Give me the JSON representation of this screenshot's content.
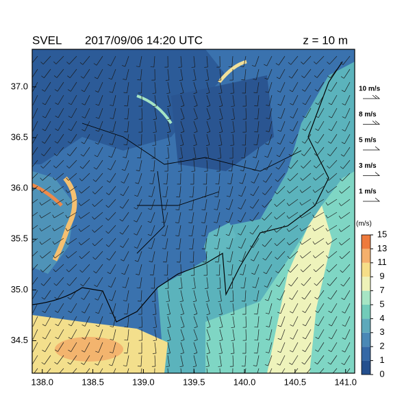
{
  "header": {
    "variable": "SVEL",
    "time": "2017/09/06 14:20 UTC",
    "level": "z = 10 m"
  },
  "axes": {
    "xlim": [
      137.9,
      141.09
    ],
    "ylim": [
      34.18,
      37.37
    ],
    "xticks": [
      {
        "value": 138,
        "label": "138.0"
      },
      138.5,
      {
        "value": 139,
        "label": "139.0"
      },
      139.5,
      {
        "value": 140,
        "label": "140.0"
      },
      140.5,
      {
        "value": 141,
        "label": "141.0"
      }
    ],
    "yticks": [
      34.5,
      {
        "value": 35,
        "label": "35.0"
      },
      35.5,
      {
        "value": 36,
        "label": "36.0"
      },
      36.5,
      {
        "value": 37,
        "label": "37.0"
      }
    ]
  },
  "wind_legend": [
    "10 m/s",
    "8 m/s",
    "5 m/s",
    "3 m/s",
    "1 m/s"
  ],
  "colorbar": {
    "unit": "(m/s)",
    "levels": [
      0,
      1,
      2,
      3,
      4,
      5,
      7,
      9,
      11,
      13,
      15
    ],
    "colors": [
      "#244f8e",
      "#3468a6",
      "#4a88b6",
      "#5ea9bb",
      "#72cbb9",
      "#a6e5c4",
      "#eef2b8",
      "#f6de88",
      "#f5b06c",
      "#ee7a3c"
    ]
  }
}
